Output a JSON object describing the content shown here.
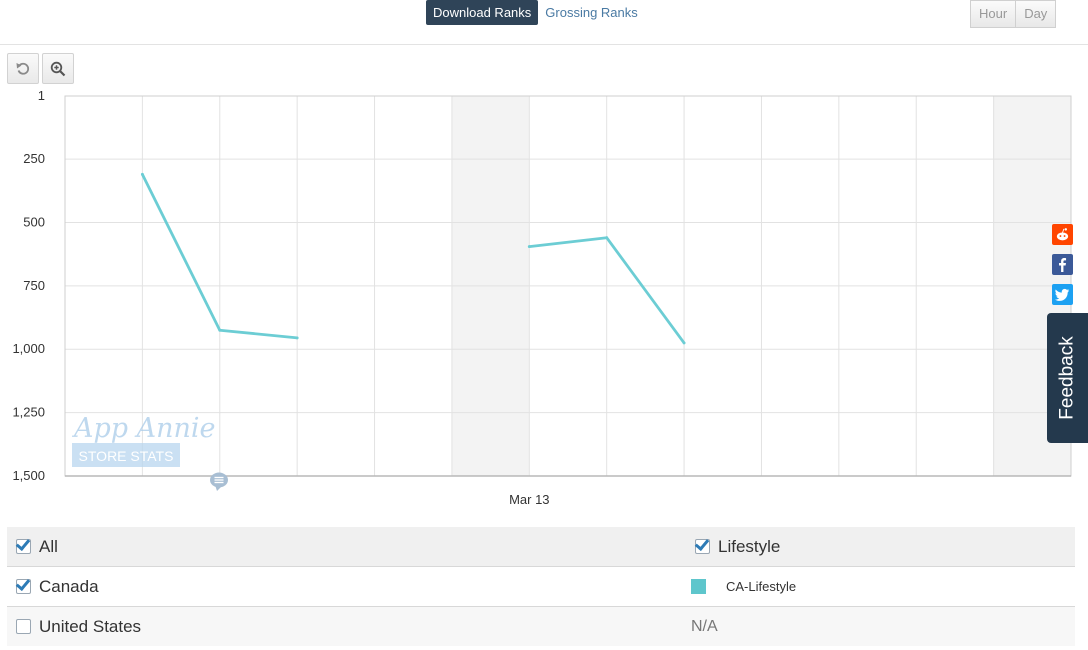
{
  "toolbar": {
    "tabs": [
      {
        "label": "Download Ranks",
        "active": true
      },
      {
        "label": "Grossing Ranks",
        "active": false
      }
    ],
    "granularity": [
      {
        "label": "Hour"
      },
      {
        "label": "Day"
      }
    ],
    "icons": [
      "reset-zoom-icon",
      "zoom-in-icon"
    ]
  },
  "social": [
    "reddit-icon",
    "facebook-icon",
    "twitter-icon"
  ],
  "feedback_label": "Feedback",
  "watermark": {
    "line1": "App Annie",
    "line2": "STORE STATS"
  },
  "chart_data": {
    "type": "line",
    "title": "",
    "xlabel": "",
    "ylabel": "",
    "y_inverted": true,
    "ylim": [
      1,
      1500
    ],
    "y_ticks": [
      "1",
      "250",
      "500",
      "750",
      "1,000",
      "1,250",
      "1,500"
    ],
    "x_tick_labels": [
      {
        "index": 6,
        "label": "Mar 13"
      }
    ],
    "x": [
      0,
      1,
      2,
      3,
      4,
      5,
      6,
      7,
      8,
      9,
      10,
      11,
      12
    ],
    "shaded_columns": [
      5,
      12
    ],
    "grid": true,
    "series": [
      {
        "name": "CA-Lifestyle",
        "color": "#6ccdd4",
        "values": [
          null,
          310,
          925,
          955,
          null,
          null,
          595,
          560,
          975,
          null,
          null,
          null,
          null
        ]
      }
    ]
  },
  "legend": {
    "header": {
      "left": "All",
      "right": "Lifestyle"
    },
    "rows": [
      {
        "name": "Canada",
        "checked": true,
        "value": "CA-Lifestyle",
        "color": "#5ec6cc"
      },
      {
        "name": "United States",
        "checked": false,
        "value": "N/A"
      }
    ]
  }
}
